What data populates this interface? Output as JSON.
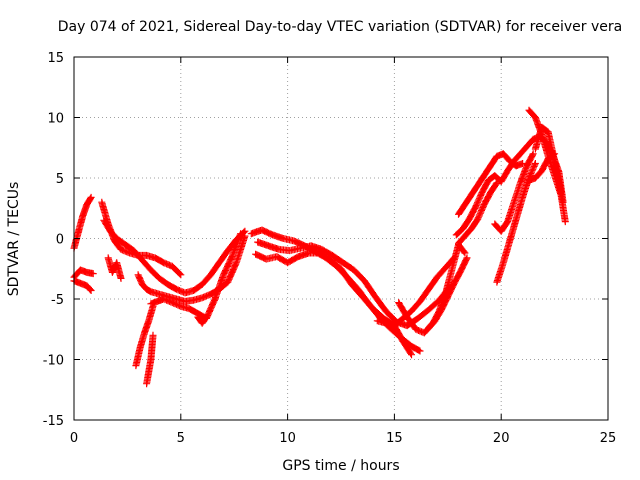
{
  "chart_data": {
    "type": "scatter",
    "title": "Day 074 of 2021, Sidereal Day-to-day VTEC variation (SDTVAR) for receiver vera",
    "xlabel": "GPS time / hours",
    "ylabel": "SDTVAR / TECUs",
    "xlim": [
      0,
      25
    ],
    "ylim": [
      -15,
      15
    ],
    "xticks": [
      0,
      5,
      10,
      15,
      20,
      25
    ],
    "yticks": [
      -15,
      -10,
      -5,
      0,
      5,
      10,
      15
    ],
    "xtick_labels": [
      "0",
      "5",
      "10",
      "15",
      "20",
      "25"
    ],
    "ytick_labels": [
      "-15",
      "-10",
      "-5",
      "0",
      "5",
      "10",
      "15"
    ],
    "grid": true,
    "marker": "+",
    "series": [
      {
        "name": "t1",
        "color": "#ff0000",
        "x": [
          0.0,
          0.2,
          0.4,
          0.6,
          0.8
        ],
        "y": [
          -0.8,
          0.5,
          1.8,
          2.8,
          3.4
        ]
      },
      {
        "name": "t2",
        "color": "#ff0000",
        "x": [
          0.0,
          0.3,
          0.6,
          0.9
        ],
        "y": [
          -3.2,
          -2.6,
          -2.8,
          -2.9
        ]
      },
      {
        "name": "t3",
        "color": "#ff0000",
        "x": [
          0.0,
          0.3,
          0.6,
          0.8
        ],
        "y": [
          -3.5,
          -3.7,
          -3.9,
          -4.3
        ]
      },
      {
        "name": "t4",
        "color": "#ff0000",
        "x": [
          1.3,
          1.6,
          1.9,
          2.2,
          2.6,
          3.0,
          3.4,
          3.8,
          4.2,
          4.6,
          5.0
        ],
        "y": [
          3.0,
          1.2,
          -0.2,
          -0.9,
          -1.2,
          -1.4,
          -1.4,
          -1.6,
          -2.0,
          -2.3,
          -3.0
        ]
      },
      {
        "name": "t5",
        "color": "#ff0000",
        "x": [
          1.4,
          1.7,
          2.0,
          2.4,
          2.8,
          3.2,
          3.6,
          4.0,
          4.4,
          4.8,
          5.2,
          5.6,
          6.0,
          6.4,
          6.8,
          7.2,
          7.6,
          8.0
        ],
        "y": [
          1.5,
          0.6,
          0.0,
          -0.5,
          -1.0,
          -1.8,
          -2.6,
          -3.3,
          -3.8,
          -4.2,
          -4.5,
          -4.3,
          -3.8,
          -3.0,
          -2.0,
          -1.0,
          -0.1,
          0.6
        ]
      },
      {
        "name": "t6",
        "color": "#ff0000",
        "x": [
          1.6,
          1.8,
          2.0,
          2.2
        ],
        "y": [
          -1.6,
          -2.8,
          -2.0,
          -3.3
        ]
      },
      {
        "name": "t7",
        "color": "#ff0000",
        "x": [
          3.0,
          3.2,
          3.4,
          3.6,
          4.0,
          4.4,
          4.8,
          5.2,
          5.6,
          6.0,
          6.4,
          6.8,
          7.2,
          7.6,
          8.0
        ],
        "y": [
          -3.0,
          -3.8,
          -4.2,
          -4.4,
          -4.6,
          -4.8,
          -5.0,
          -5.2,
          -5.1,
          -4.9,
          -4.6,
          -4.2,
          -3.6,
          -2.0,
          0.2
        ]
      },
      {
        "name": "t8",
        "color": "#ff0000",
        "x": [
          2.9,
          3.1,
          3.3,
          3.5,
          3.7
        ],
        "y": [
          -10.5,
          -9.0,
          -7.8,
          -6.8,
          -5.6
        ]
      },
      {
        "name": "t9",
        "color": "#ff0000",
        "x": [
          3.4,
          3.6,
          3.7
        ],
        "y": [
          -12.0,
          -10.0,
          -8.0
        ]
      },
      {
        "name": "t10",
        "color": "#ff0000",
        "x": [
          3.6,
          3.9,
          4.2,
          4.6,
          5.0,
          5.4,
          5.8,
          6.2,
          6.6,
          7.0,
          7.4,
          7.8
        ],
        "y": [
          -5.4,
          -5.2,
          -5.0,
          -5.3,
          -5.6,
          -5.8,
          -6.2,
          -6.6,
          -5.0,
          -3.0,
          -1.5,
          0.4
        ]
      },
      {
        "name": "t11",
        "color": "#ff0000",
        "x": [
          5.8,
          6.0,
          6.2
        ],
        "y": [
          -6.5,
          -7.0,
          -6.5
        ]
      },
      {
        "name": "t12",
        "color": "#ff0000",
        "x": [
          8.3,
          8.8,
          9.3,
          9.8,
          10.3,
          10.8,
          11.3,
          11.8,
          12.3,
          12.8,
          13.3,
          13.8,
          14.3,
          14.8,
          15.3,
          15.8,
          16.2
        ],
        "y": [
          0.4,
          0.7,
          0.3,
          0.0,
          -0.2,
          -0.6,
          -1.1,
          -1.6,
          -2.3,
          -3.2,
          -4.2,
          -5.4,
          -6.5,
          -7.4,
          -8.2,
          -8.9,
          -9.3
        ]
      },
      {
        "name": "t13",
        "color": "#ff0000",
        "x": [
          8.5,
          9.0,
          9.5,
          10.0,
          10.5,
          11.0,
          11.5,
          12.0,
          12.5,
          13.0,
          13.5,
          14.0,
          14.5,
          15.0,
          15.4,
          15.8
        ],
        "y": [
          -1.3,
          -1.7,
          -1.5,
          -2.0,
          -1.5,
          -1.2,
          -1.2,
          -1.8,
          -2.5,
          -3.8,
          -4.8,
          -5.8,
          -6.6,
          -7.2,
          -8.5,
          -9.6
        ]
      },
      {
        "name": "t14",
        "color": "#ff0000",
        "x": [
          8.6,
          9.1,
          9.6,
          10.1,
          10.6,
          11.1,
          11.6,
          12.1,
          12.6,
          13.1,
          13.6,
          14.1,
          14.6,
          15.1,
          15.6,
          16.1,
          16.6,
          17.1,
          17.6
        ],
        "y": [
          -0.3,
          -0.6,
          -0.9,
          -1.0,
          -0.8,
          -0.6,
          -0.9,
          -1.4,
          -2.0,
          -2.6,
          -3.5,
          -4.8,
          -6.0,
          -6.9,
          -7.2,
          -6.6,
          -5.9,
          -5.1,
          -4.0
        ]
      },
      {
        "name": "t15",
        "color": "#ff0000",
        "x": [
          14.2,
          14.6,
          15.0,
          15.4,
          15.8,
          16.2,
          16.6,
          17.0,
          17.4,
          17.8
        ],
        "y": [
          -6.8,
          -7.0,
          -7.2,
          -6.6,
          -6.0,
          -5.2,
          -4.2,
          -3.2,
          -2.4,
          -1.6
        ]
      },
      {
        "name": "t16",
        "color": "#ff0000",
        "x": [
          15.2,
          15.6,
          16.0,
          16.4,
          16.8,
          17.1,
          17.4,
          17.7,
          18.0,
          18.3
        ],
        "y": [
          -5.3,
          -6.5,
          -7.5,
          -7.8,
          -7.0,
          -6.0,
          -4.5,
          -2.5,
          -0.5,
          -1.2
        ]
      },
      {
        "name": "t17",
        "color": "#ff0000",
        "x": [
          16.6,
          16.9,
          17.2,
          17.5,
          17.8,
          18.1,
          18.4
        ],
        "y": [
          -7.4,
          -6.8,
          -5.9,
          -4.8,
          -3.7,
          -2.7,
          -1.6
        ]
      },
      {
        "name": "t18",
        "color": "#ff0000",
        "x": [
          18.0,
          18.3,
          18.6,
          18.9,
          19.2,
          19.5,
          19.8,
          20.1,
          20.4,
          20.7,
          21.0
        ],
        "y": [
          2.0,
          2.8,
          3.6,
          4.4,
          5.2,
          6.0,
          6.8,
          7.0,
          6.4,
          6.0,
          6.2
        ]
      },
      {
        "name": "t19",
        "color": "#ff0000",
        "x": [
          17.9,
          18.2,
          18.5,
          18.8,
          19.1,
          19.4,
          19.7,
          20.0,
          20.3,
          20.6,
          20.9,
          21.2,
          21.5,
          21.8,
          22.1,
          22.4,
          22.7,
          22.9
        ],
        "y": [
          0.3,
          0.8,
          1.6,
          2.6,
          3.8,
          4.8,
          5.2,
          4.7,
          5.6,
          6.4,
          7.0,
          7.6,
          8.2,
          8.4,
          8.0,
          7.0,
          5.5,
          3.0
        ]
      },
      {
        "name": "t20",
        "color": "#ff0000",
        "x": [
          18.0,
          18.3,
          18.6,
          18.9,
          19.2,
          19.5,
          19.8
        ],
        "y": [
          -0.4,
          0.2,
          0.8,
          1.6,
          2.8,
          3.8,
          4.6
        ]
      },
      {
        "name": "t21",
        "color": "#ff0000",
        "x": [
          19.7,
          20.0,
          20.3,
          20.6,
          20.9,
          21.2,
          21.5
        ],
        "y": [
          1.2,
          0.6,
          1.4,
          3.0,
          4.6,
          6.0,
          7.0
        ]
      },
      {
        "name": "t22",
        "color": "#ff0000",
        "x": [
          19.8,
          20.1,
          20.4,
          20.7,
          21.0,
          21.3,
          21.6
        ],
        "y": [
          -3.6,
          -2.0,
          -0.2,
          1.6,
          3.4,
          5.0,
          6.2
        ]
      },
      {
        "name": "t23",
        "color": "#ff0000",
        "x": [
          21.3,
          21.6,
          21.9,
          22.2,
          22.5,
          22.8,
          23.0
        ],
        "y": [
          10.6,
          10.0,
          8.6,
          6.8,
          5.2,
          3.6,
          1.4
        ]
      },
      {
        "name": "t24",
        "color": "#ff0000",
        "x": [
          21.3,
          21.6,
          21.9,
          22.2,
          22.5
        ],
        "y": [
          4.8,
          5.0,
          5.6,
          6.6,
          7.0
        ]
      },
      {
        "name": "t25",
        "color": "#ff0000",
        "x": [
          21.6,
          21.9,
          22.2,
          22.5,
          22.8
        ],
        "y": [
          7.4,
          9.2,
          8.8,
          6.4,
          3.8
        ]
      }
    ]
  }
}
